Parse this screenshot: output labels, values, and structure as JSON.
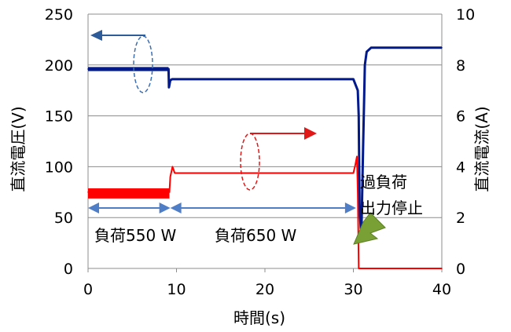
{
  "chart_data": {
    "type": "line",
    "title": "",
    "xlabel": "時間(s)",
    "ylabel_left": "直流電圧(V)",
    "ylabel_right": "直流電流(A)",
    "xlim": [
      0,
      40
    ],
    "ylim_left": [
      0,
      250
    ],
    "ylim_right": [
      0,
      10
    ],
    "x_ticks": [
      "0",
      "10",
      "20",
      "30",
      "40"
    ],
    "y_left_ticks": [
      "0",
      "50",
      "100",
      "150",
      "200",
      "250"
    ],
    "y_right_ticks": [
      "0",
      "2",
      "4",
      "6",
      "8",
      "10"
    ],
    "grid": true,
    "series": [
      {
        "name": "",
        "axis": "left",
        "color": "#001a8c",
        "x": [
          0,
          9.1,
          9.15,
          9.3,
          9.5,
          30,
          30.5,
          30.6,
          30.7,
          30.9,
          31.1,
          31.3,
          31.5,
          32,
          40
        ],
        "y": [
          196,
          196,
          178,
          185,
          186,
          186,
          175,
          150,
          60,
          30,
          120,
          200,
          213,
          217,
          217
        ]
      },
      {
        "name": "",
        "axis": "right",
        "color": "#ff0000",
        "x": [
          0,
          9.2,
          9.3,
          9.55,
          9.8,
          10,
          30,
          30.2,
          30.4,
          30.5,
          30.6,
          30.8,
          40
        ],
        "y": [
          3.0,
          3.0,
          3.6,
          4.0,
          3.75,
          3.75,
          3.75,
          4.05,
          4.4,
          3.0,
          0,
          0,
          0
        ]
      }
    ],
    "annotations": {
      "segment_1": "負荷550 W",
      "segment_2": "負荷650 W",
      "overload_line1": "過負荷",
      "overload_line2": "出力停止"
    },
    "colors": {
      "voltage": "#001a8c",
      "current": "#ff0000",
      "annotation_arrow": "#4f7ec7",
      "marker_arrow": "#79a035"
    }
  }
}
